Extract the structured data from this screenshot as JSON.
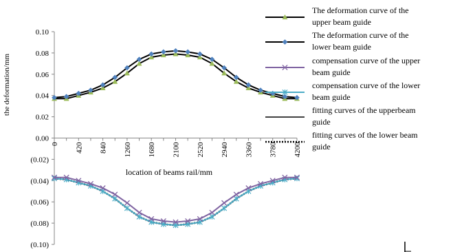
{
  "chart_data": {
    "type": "line",
    "ylabel": "the deformation/mm",
    "xlabel": "location of beams rail/mm",
    "ylim": [
      -0.1,
      0.1
    ],
    "ytick_labels": [
      "0.10",
      "0.08",
      "0.06",
      "0.04",
      "0.02",
      "0.00",
      "(0.02)",
      "(0.04)",
      "(0.06)",
      "(0.08)",
      "(0.10)"
    ],
    "ytick_values": [
      0.1,
      0.08,
      0.06,
      0.04,
      0.02,
      0.0,
      -0.02,
      -0.04,
      -0.06,
      -0.08,
      -0.1
    ],
    "x": [
      0,
      210,
      420,
      630,
      840,
      1050,
      1260,
      1470,
      1680,
      1890,
      2100,
      2310,
      2520,
      2730,
      2940,
      3150,
      3360,
      3570,
      3780,
      3990,
      4200
    ],
    "xtick_labels": [
      "0",
      "420",
      "840",
      "1260",
      "1680",
      "2100",
      "2520",
      "2940",
      "3360",
      "3780",
      "4200"
    ],
    "grid": false,
    "legend_position": "right",
    "series": [
      {
        "name": "The deformation curve of the upper beam guide",
        "color": "#000000",
        "marker": "triangle",
        "marker_color": "#9bbb59",
        "values": [
          0.037,
          0.037,
          0.04,
          0.043,
          0.047,
          0.053,
          0.061,
          0.07,
          0.076,
          0.078,
          0.079,
          0.078,
          0.076,
          0.07,
          0.061,
          0.053,
          0.047,
          0.043,
          0.04,
          0.037,
          0.037
        ]
      },
      {
        "name": "The deformation curve of the lower beam guide",
        "color": "#000000",
        "marker": "diamond",
        "marker_color": "#4f81bd",
        "values": [
          0.038,
          0.039,
          0.042,
          0.045,
          0.05,
          0.057,
          0.066,
          0.074,
          0.079,
          0.081,
          0.082,
          0.081,
          0.079,
          0.074,
          0.066,
          0.057,
          0.05,
          0.045,
          0.042,
          0.039,
          0.038
        ]
      },
      {
        "name": "compensation curve of the upper beam guide",
        "color": "#8064a2",
        "marker": "x",
        "marker_color": "#8064a2",
        "values": [
          -0.037,
          -0.037,
          -0.04,
          -0.043,
          -0.047,
          -0.053,
          -0.061,
          -0.07,
          -0.076,
          -0.078,
          -0.079,
          -0.078,
          -0.076,
          -0.07,
          -0.061,
          -0.053,
          -0.047,
          -0.043,
          -0.04,
          -0.037,
          -0.037
        ]
      },
      {
        "name": "compensation curve of the lower beam guide",
        "color": "#4bacc6",
        "marker": "star",
        "marker_color": "#4bacc6",
        "values": [
          -0.038,
          -0.039,
          -0.042,
          -0.045,
          -0.05,
          -0.057,
          -0.066,
          -0.074,
          -0.079,
          -0.081,
          -0.082,
          -0.081,
          -0.079,
          -0.074,
          -0.066,
          -0.057,
          -0.05,
          -0.045,
          -0.042,
          -0.039,
          -0.038
        ]
      },
      {
        "name": "fitting curves of the upperbeam guide",
        "color": "#000000",
        "marker": "none",
        "line": "solid",
        "values": [
          -0.037,
          -0.037,
          -0.04,
          -0.043,
          -0.047,
          -0.053,
          -0.061,
          -0.07,
          -0.076,
          -0.078,
          -0.079,
          -0.078,
          -0.076,
          -0.07,
          -0.061,
          -0.053,
          -0.047,
          -0.043,
          -0.04,
          -0.037,
          -0.037
        ]
      },
      {
        "name": "fitting curves of the lower beam guide",
        "color": "#000000",
        "marker": "none",
        "line": "dotted",
        "values": [
          -0.038,
          -0.039,
          -0.042,
          -0.045,
          -0.05,
          -0.057,
          -0.066,
          -0.074,
          -0.079,
          -0.081,
          -0.082,
          -0.081,
          -0.079,
          -0.074,
          -0.066,
          -0.057,
          -0.05,
          -0.045,
          -0.042,
          -0.039,
          -0.038
        ]
      }
    ],
    "legend_lines": [
      [
        "The deformation curve of the",
        "upper beam guide"
      ],
      [
        "The deformation curve of the",
        "lower beam guide"
      ],
      [
        "compensation curve of the upper",
        "beam guide"
      ],
      [
        "compensation curve of the lower",
        "beam guide"
      ],
      [
        "fitting curves of the upperbeam",
        "guide"
      ],
      [
        "fitting curves of the lower beam",
        "guide"
      ]
    ]
  }
}
